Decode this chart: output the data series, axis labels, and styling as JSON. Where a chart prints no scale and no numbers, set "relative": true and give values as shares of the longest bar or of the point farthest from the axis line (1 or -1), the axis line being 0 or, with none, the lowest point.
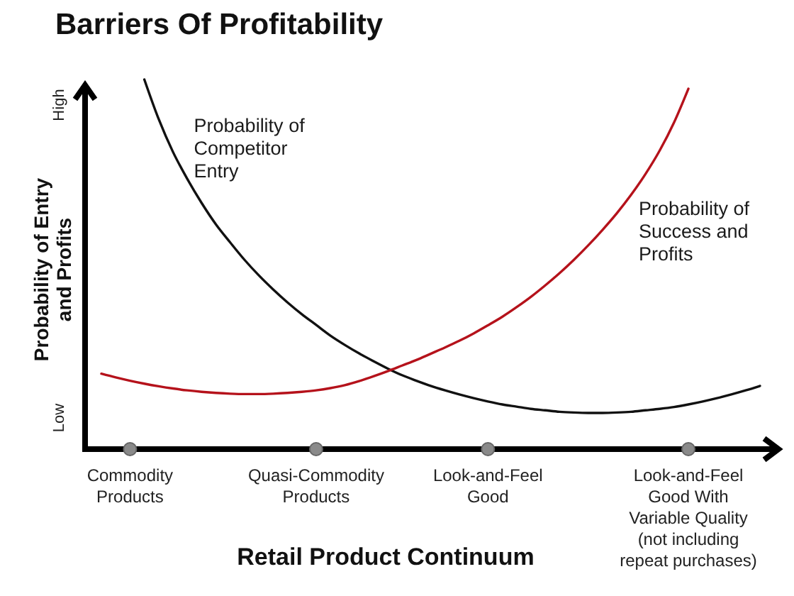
{
  "chart_data": {
    "type": "line",
    "title": "Barriers Of Profitability",
    "xlabel": "Retail Product Continuum",
    "ylabel": "Probability of Entry and Profits",
    "relative": true,
    "annotations": [
      "High",
      "Low"
    ],
    "categories": [
      null,
      null,
      "Commodity Products",
      null,
      null,
      null,
      null,
      null,
      null,
      null,
      null,
      null,
      null,
      null,
      null,
      "Quasi-Commodity Products",
      null,
      null,
      null,
      null,
      null,
      null,
      null,
      null,
      null,
      null,
      null,
      "Look-and-Feel Good",
      null,
      null,
      null,
      null,
      null,
      null,
      null,
      null,
      null,
      null,
      null,
      null,
      null,
      "Look-and-Feel Good With Variable Quality (not including repeat purchases)",
      null,
      null,
      null,
      null,
      null
    ],
    "series": [
      {
        "name": "Probability of Competitor Entry",
        "color": "#111111",
        "values": [
          null,
          null,
          null,
          1.0,
          0.893,
          0.804,
          0.731,
          0.666,
          0.608,
          0.559,
          0.512,
          0.47,
          0.432,
          0.397,
          0.365,
          0.336,
          0.307,
          0.282,
          0.259,
          0.238,
          0.218,
          0.2,
          0.185,
          0.171,
          0.159,
          0.148,
          0.138,
          0.129,
          0.121,
          0.115,
          0.109,
          0.105,
          0.101,
          0.099,
          0.098,
          0.098,
          0.099,
          0.101,
          0.105,
          0.109,
          0.114,
          0.121,
          0.129,
          0.138,
          0.148,
          0.159,
          0.171
        ]
      },
      {
        "name": "Probability of Success and Profits",
        "color": "#b5121b",
        "values": [
          0.204,
          0.194,
          0.185,
          0.177,
          0.17,
          0.164,
          0.159,
          0.155,
          0.152,
          0.15,
          0.149,
          0.149,
          0.15,
          0.152,
          0.155,
          0.159,
          0.165,
          0.173,
          0.184,
          0.197,
          0.211,
          0.226,
          0.241,
          0.258,
          0.275,
          0.293,
          0.313,
          0.335,
          0.358,
          0.384,
          0.412,
          0.443,
          0.476,
          0.512,
          0.551,
          0.593,
          0.638,
          0.688,
          0.744,
          0.808,
          0.884,
          0.975,
          null,
          null,
          null,
          null,
          null
        ]
      }
    ]
  }
}
